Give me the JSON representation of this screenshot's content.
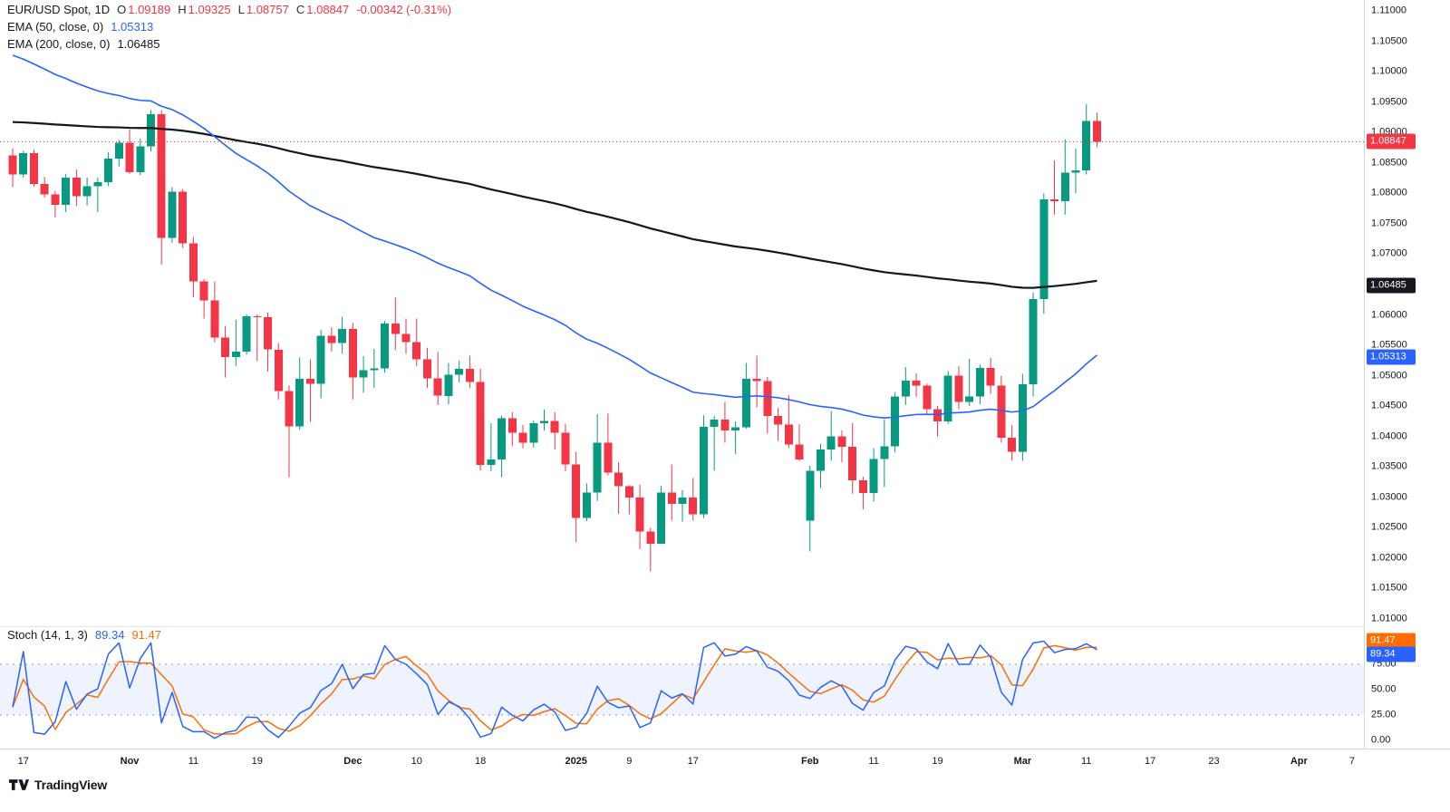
{
  "header": {
    "symbol": "EUR/USD Spot,",
    "timeframe": "1D",
    "open_label": "O",
    "open": "1.09189",
    "high_label": "H",
    "high": "1.09325",
    "low_label": "L",
    "low": "1.08757",
    "close_label": "C",
    "close": "1.08847",
    "change": "-0.00342 (-0.31%)"
  },
  "indicators": {
    "ema50": {
      "label": "EMA (50, close, 0)",
      "value": "1.05313"
    },
    "ema200": {
      "label": "EMA (200, close, 0)",
      "value": "1.06485"
    },
    "stoch": {
      "label": "Stoch (14, 1, 3)",
      "k_value": "89.34",
      "d_value": "91.47"
    }
  },
  "footer": {
    "logo_text": "TradingView"
  },
  "chart_data": {
    "type": "candlestick",
    "symbol": "EUR/USD Spot",
    "timeframe": "1D",
    "colors": {
      "up": "#089981",
      "down": "#f23645"
    },
    "price_axis": {
      "min": 1.01,
      "max": 1.11,
      "step": 0.005,
      "decimals": 5
    },
    "price_line": {
      "value": 1.08847,
      "label": "1.08847",
      "color": "#f23645"
    },
    "ema50": {
      "length": 50,
      "seed": 1.1035,
      "color": "#2962ff",
      "last_value": 1.05313
    },
    "ema200": {
      "length": 200,
      "seed": 1.0918,
      "color": "#131722",
      "last_value": 1.06485
    },
    "stoch": {
      "k_period": 14,
      "k_smooth": 1,
      "d_period": 3,
      "k": 89.34,
      "d": 91.47,
      "k_color": "#2962ff",
      "d_color": "#ff6d00",
      "upper": 75,
      "lower": 25,
      "ticks": [
        0,
        25,
        50,
        75,
        100
      ],
      "band_color": "rgba(41,98,255,0.08)",
      "level_color": "#9598a1"
    },
    "price_badges": [
      {
        "name": "current-price-badge",
        "value": "1.08847",
        "price": 1.08847,
        "color": "#f23645"
      },
      {
        "name": "ema200-price-badge",
        "value": "1.06485",
        "price": 1.06485,
        "color": "#15191f"
      },
      {
        "name": "ema50-price-badge",
        "value": "1.05313",
        "price": 1.05313,
        "color": "#2962ff"
      }
    ],
    "stoch_badges": [
      {
        "name": "stoch-d-badge",
        "value": "91.47",
        "v": 91.47,
        "dy": -8,
        "color": "#ff6d00"
      },
      {
        "name": "stoch-k-badge",
        "value": "89.34",
        "v": 89.34,
        "dy": 5,
        "color": "#2962ff"
      }
    ],
    "x_ticks": [
      {
        "i": 1,
        "label": "17"
      },
      {
        "i": 11,
        "label": "Nov",
        "strong": true
      },
      {
        "i": 17,
        "label": "11"
      },
      {
        "i": 23,
        "label": "19"
      },
      {
        "i": 32,
        "label": "Dec",
        "strong": true
      },
      {
        "i": 38,
        "label": "10"
      },
      {
        "i": 44,
        "label": "18"
      },
      {
        "i": 53,
        "label": "2025",
        "strong": true
      },
      {
        "i": 58,
        "label": "9"
      },
      {
        "i": 64,
        "label": "17"
      },
      {
        "i": 75,
        "label": "Feb",
        "strong": true
      },
      {
        "i": 81,
        "label": "11"
      },
      {
        "i": 87,
        "label": "19"
      },
      {
        "i": 95,
        "label": "Mar",
        "strong": true
      },
      {
        "i": 101,
        "label": "11"
      },
      {
        "i": 107,
        "label": "17"
      },
      {
        "i": 113,
        "label": "23"
      },
      {
        "i": 121,
        "label": "Apr",
        "strong": true
      },
      {
        "i": 126,
        "label": "7"
      }
    ],
    "candles": [
      [
        1.0862,
        1.0874,
        1.081,
        1.0831
      ],
      [
        1.0831,
        1.087,
        1.0826,
        1.0866
      ],
      [
        1.0866,
        1.0872,
        1.0811,
        1.0815
      ],
      [
        1.0815,
        1.0827,
        1.0793,
        1.0798
      ],
      [
        1.0798,
        1.0804,
        1.076,
        1.0781
      ],
      [
        1.0781,
        1.0832,
        1.0769,
        1.0826
      ],
      [
        1.0826,
        1.0839,
        1.0779,
        1.0795
      ],
      [
        1.0795,
        1.0826,
        1.078,
        1.0812
      ],
      [
        1.0812,
        1.0826,
        1.0769,
        1.0818
      ],
      [
        1.0818,
        1.0868,
        1.0812,
        1.0857
      ],
      [
        1.0857,
        1.0888,
        1.0844,
        1.0883
      ],
      [
        1.0883,
        1.0905,
        1.0832,
        1.0835
      ],
      [
        1.0835,
        1.089,
        1.083,
        1.0877
      ],
      [
        1.0877,
        1.0937,
        1.0869,
        1.093
      ],
      [
        1.093,
        1.0937,
        1.0683,
        1.0727
      ],
      [
        1.0727,
        1.081,
        1.0719,
        1.0803
      ],
      [
        1.0803,
        1.0807,
        1.071,
        1.0718
      ],
      [
        1.0718,
        1.0728,
        1.0629,
        1.0655
      ],
      [
        1.0655,
        1.0659,
        1.0594,
        1.0624
      ],
      [
        1.0624,
        1.0655,
        1.0555,
        1.0563
      ],
      [
        1.0563,
        1.0582,
        1.0497,
        1.0531
      ],
      [
        1.0531,
        1.0592,
        1.0516,
        1.054
      ],
      [
        1.054,
        1.0601,
        1.0535,
        1.0598
      ],
      [
        1.0598,
        1.0601,
        1.0524,
        1.0596
      ],
      [
        1.0596,
        1.0604,
        1.0507,
        1.0543
      ],
      [
        1.0543,
        1.0554,
        1.0461,
        1.0475
      ],
      [
        1.0475,
        1.0484,
        1.0333,
        1.0417
      ],
      [
        1.0417,
        1.053,
        1.0411,
        1.0495
      ],
      [
        1.0495,
        1.0527,
        1.0424,
        1.0487
      ],
      [
        1.0487,
        1.0575,
        1.0463,
        1.0566
      ],
      [
        1.0566,
        1.058,
        1.054,
        1.0554
      ],
      [
        1.0554,
        1.0597,
        1.0536,
        1.0577
      ],
      [
        1.0577,
        1.0587,
        1.0461,
        1.0497
      ],
      [
        1.0497,
        1.0532,
        1.0472,
        1.0509
      ],
      [
        1.0509,
        1.0544,
        1.048,
        1.0512
      ],
      [
        1.0512,
        1.059,
        1.0505,
        1.0586
      ],
      [
        1.0586,
        1.0629,
        1.0542,
        1.0569
      ],
      [
        1.0569,
        1.0594,
        1.0536,
        1.0555
      ],
      [
        1.0555,
        1.0594,
        1.0516,
        1.0527
      ],
      [
        1.0527,
        1.0546,
        1.048,
        1.0496
      ],
      [
        1.0496,
        1.0539,
        1.0452,
        1.0467
      ],
      [
        1.0467,
        1.0521,
        1.0453,
        1.0502
      ],
      [
        1.0502,
        1.0525,
        1.0489,
        1.0511
      ],
      [
        1.0511,
        1.0533,
        1.048,
        1.049
      ],
      [
        1.049,
        1.0512,
        1.0344,
        1.0353
      ],
      [
        1.0353,
        1.0422,
        1.0343,
        1.0362
      ],
      [
        1.0362,
        1.0434,
        1.0333,
        1.043
      ],
      [
        1.043,
        1.044,
        1.0384,
        1.0406
      ],
      [
        1.0406,
        1.0419,
        1.0381,
        1.039
      ],
      [
        1.039,
        1.0426,
        1.0382,
        1.0422
      ],
      [
        1.0422,
        1.0444,
        1.041,
        1.0426
      ],
      [
        1.0426,
        1.044,
        1.0379,
        1.0406
      ],
      [
        1.0406,
        1.0421,
        1.0343,
        1.0354
      ],
      [
        1.0354,
        1.0375,
        1.0226,
        1.0266
      ],
      [
        1.0266,
        1.0323,
        1.0261,
        1.0308
      ],
      [
        1.0308,
        1.0437,
        1.0294,
        1.039
      ],
      [
        1.039,
        1.0438,
        1.0336,
        1.0341
      ],
      [
        1.0341,
        1.0358,
        1.0273,
        1.0318
      ],
      [
        1.0318,
        1.032,
        1.0272,
        1.03
      ],
      [
        1.03,
        1.0321,
        1.0215,
        1.0244
      ],
      [
        1.0244,
        1.025,
        1.0178,
        1.0224
      ],
      [
        1.0224,
        1.0319,
        1.0224,
        1.0308
      ],
      [
        1.0308,
        1.0354,
        1.0262,
        1.0289
      ],
      [
        1.0289,
        1.0312,
        1.026,
        1.03
      ],
      [
        1.03,
        1.0332,
        1.0262,
        1.0272
      ],
      [
        1.0272,
        1.0435,
        1.0266,
        1.0416
      ],
      [
        1.0416,
        1.0434,
        1.0344,
        1.0428
      ],
      [
        1.0428,
        1.0457,
        1.039,
        1.041
      ],
      [
        1.041,
        1.0425,
        1.0371,
        1.0415
      ],
      [
        1.0415,
        1.0521,
        1.0413,
        1.0495
      ],
      [
        1.0495,
        1.0533,
        1.0448,
        1.0491
      ],
      [
        1.0491,
        1.0498,
        1.0405,
        1.0434
      ],
      [
        1.0434,
        1.0447,
        1.0393,
        1.042
      ],
      [
        1.042,
        1.0468,
        1.0381,
        1.0387
      ],
      [
        1.0387,
        1.042,
        1.036,
        1.0362
      ],
      [
        1.0262,
        1.0352,
        1.0211,
        1.0344
      ],
      [
        1.0344,
        1.0388,
        1.0315,
        1.0379
      ],
      [
        1.0379,
        1.0442,
        1.036,
        1.04
      ],
      [
        1.04,
        1.041,
        1.0358,
        1.0383
      ],
      [
        1.0383,
        1.0422,
        1.0306,
        1.0328
      ],
      [
        1.0328,
        1.0334,
        1.028,
        1.0307
      ],
      [
        1.0307,
        1.0381,
        1.0293,
        1.0363
      ],
      [
        1.0363,
        1.0428,
        1.0317,
        1.0384
      ],
      [
        1.0384,
        1.0473,
        1.0374,
        1.0466
      ],
      [
        1.0466,
        1.0514,
        1.0452,
        1.0492
      ],
      [
        1.0492,
        1.0504,
        1.0465,
        1.0484
      ],
      [
        1.0484,
        1.0487,
        1.0436,
        1.0445
      ],
      [
        1.0445,
        1.045,
        1.04,
        1.0425
      ],
      [
        1.0425,
        1.0508,
        1.0421,
        1.05
      ],
      [
        1.05,
        1.0516,
        1.0445,
        1.0457
      ],
      [
        1.0457,
        1.0528,
        1.045,
        1.0466
      ],
      [
        1.0466,
        1.0518,
        1.0453,
        1.0513
      ],
      [
        1.0513,
        1.0529,
        1.047,
        1.0484
      ],
      [
        1.0484,
        1.05,
        1.039,
        1.0398
      ],
      [
        1.0398,
        1.0419,
        1.036,
        1.0375
      ],
      [
        1.0375,
        1.0503,
        1.036,
        1.0486
      ],
      [
        1.0486,
        1.0637,
        1.0466,
        1.0626
      ],
      [
        1.0626,
        1.08,
        1.0602,
        1.079
      ],
      [
        1.079,
        1.0854,
        1.0765,
        1.0787
      ],
      [
        1.0787,
        1.0889,
        1.0765,
        1.0834
      ],
      [
        1.0834,
        1.0874,
        1.08,
        1.0838
      ],
      [
        1.0838,
        1.0947,
        1.0831,
        1.09189
      ],
      [
        1.09189,
        1.09325,
        1.08757,
        1.08847
      ]
    ]
  }
}
